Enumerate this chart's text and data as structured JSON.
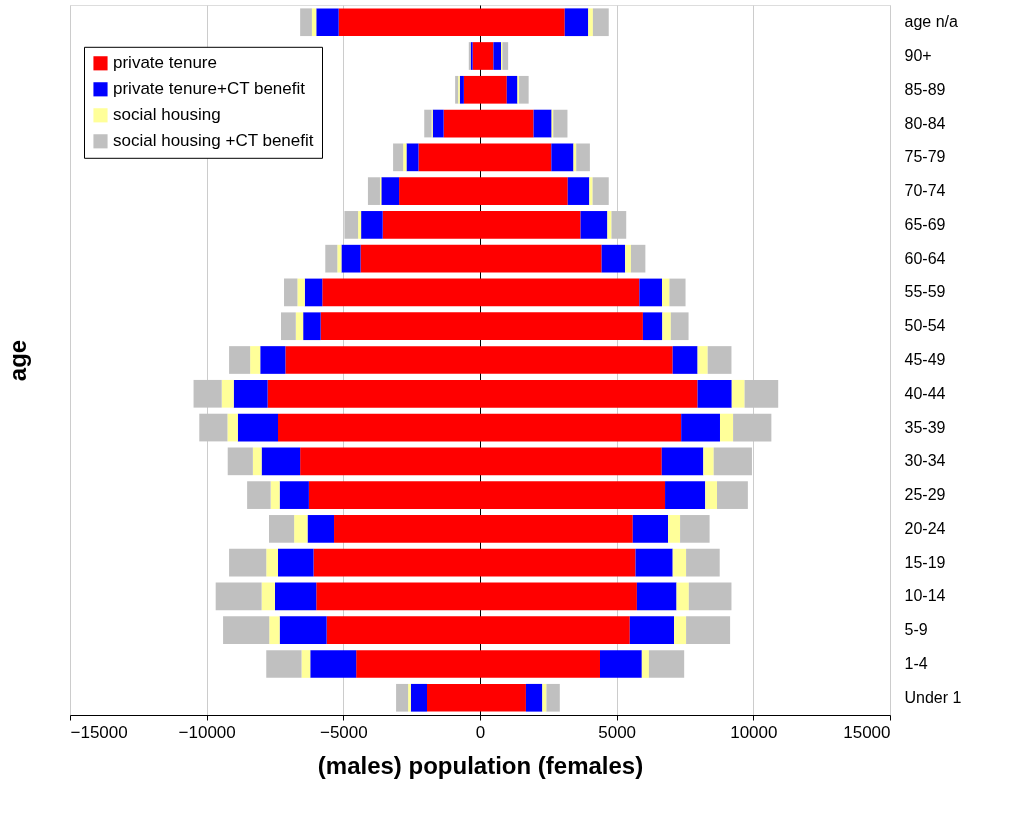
{
  "chart_data": {
    "type": "bar",
    "orientation": "horizontal",
    "stacked": true,
    "xlabel": "(males) population (females)",
    "ylabel": "age",
    "categories": [
      "age n/a",
      "90+",
      "85-89",
      "80-84",
      "75-79",
      "70-74",
      "65-69",
      "60-64",
      "55-59",
      "50-54",
      "45-49",
      "40-44",
      "35-39",
      "30-34",
      "25-29",
      "20-24",
      "15-19",
      "10-14",
      "5-9",
      "1-4",
      "Under 1"
    ],
    "series": [
      {
        "name": "private tenure",
        "color": "#ff0000",
        "values": [
          3100,
          490,
          980,
          1960,
          2610,
          3210,
          3680,
          4450,
          5830,
          5960,
          7050,
          7960,
          7360,
          6650,
          6770,
          5590,
          5690,
          5740,
          5480,
          4390,
          1680
        ]
      },
      {
        "name": "private tenure+CT benefit",
        "color": "#0000ff",
        "values": [
          860,
          280,
          390,
          660,
          810,
          790,
          980,
          860,
          830,
          710,
          910,
          1250,
          1420,
          1520,
          1470,
          1290,
          1360,
          1450,
          1620,
          1530,
          600
        ]
      },
      {
        "name": "social housing",
        "color": "#ffff99",
        "values": [
          170,
          50,
          60,
          60,
          100,
          120,
          150,
          210,
          270,
          310,
          370,
          470,
          480,
          380,
          430,
          440,
          490,
          450,
          440,
          260,
          150
        ]
      },
      {
        "name": "social housing +CT benefit",
        "color": "#c0c0c0",
        "values": [
          580,
          210,
          350,
          520,
          500,
          590,
          540,
          530,
          590,
          650,
          870,
          1230,
          1400,
          1400,
          1130,
          1080,
          1230,
          1560,
          1610,
          1290,
          490
        ]
      },
      {
        "color": "#ff0000",
        "values": [
          -5170,
          -270,
          -590,
          -1330,
          -2250,
          -2960,
          -3560,
          -4370,
          -5770,
          -5830,
          -7120,
          -7770,
          -7390,
          -6580,
          -6260,
          -5340,
          -6090,
          -5990,
          -5610,
          -4530,
          -1940
        ]
      },
      {
        "color": "#0000ff",
        "values": [
          -820,
          -60,
          -150,
          -400,
          -440,
          -650,
          -790,
          -700,
          -640,
          -640,
          -920,
          -1240,
          -1470,
          -1410,
          -1070,
          -970,
          -1300,
          -1510,
          -1720,
          -1680,
          -590
        ]
      },
      {
        "color": "#ffff99",
        "values": [
          -160,
          null,
          -60,
          -40,
          -120,
          -50,
          -110,
          -150,
          -270,
          -270,
          -370,
          -440,
          -380,
          -320,
          -330,
          -490,
          -430,
          -490,
          -380,
          -320,
          -100
        ]
      },
      {
        "color": "#c0c0c0",
        "values": [
          -430,
          -80,
          -110,
          -270,
          -370,
          -440,
          -500,
          -440,
          -490,
          -540,
          -770,
          -1030,
          -1030,
          -920,
          -860,
          -920,
          -1360,
          -1680,
          -1690,
          -1290,
          -440
        ]
      }
    ],
    "xlim": [
      -15000,
      15000
    ],
    "xticks": [
      -15000,
      -10000,
      -5000,
      0,
      5000,
      10000,
      15000
    ],
    "grid": "x",
    "legend": "top left"
  }
}
